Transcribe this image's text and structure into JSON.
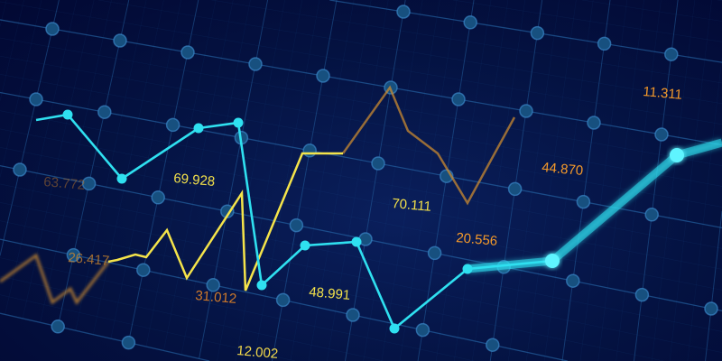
{
  "chart_data": {
    "type": "line",
    "title": "",
    "xlabel": "",
    "ylabel": "",
    "grid": true,
    "annotations": [
      {
        "text": "63.772",
        "color": "#b8732a"
      },
      {
        "text": "69.928",
        "color": "#f2e04a"
      },
      {
        "text": "26.417",
        "color": "#c9852d"
      },
      {
        "text": "31.012",
        "color": "#d07a2a"
      },
      {
        "text": "12.002",
        "color": "#f2d84a"
      },
      {
        "text": "48.991",
        "color": "#f2e04a"
      },
      {
        "text": "70.111",
        "color": "#f2e04a"
      },
      {
        "text": "20.556",
        "color": "#f59a2a"
      },
      {
        "text": "44.870",
        "color": "#f59a2a"
      },
      {
        "text": "11.311",
        "color": "#f59a2a"
      }
    ],
    "series_colors": {
      "cyan": "#2fe0f0",
      "yellow": "#f5e44a",
      "orange": "#c98a30"
    },
    "colors": {
      "background": "#041241",
      "grid": "#2a6fb0",
      "node": "#17507f"
    }
  }
}
